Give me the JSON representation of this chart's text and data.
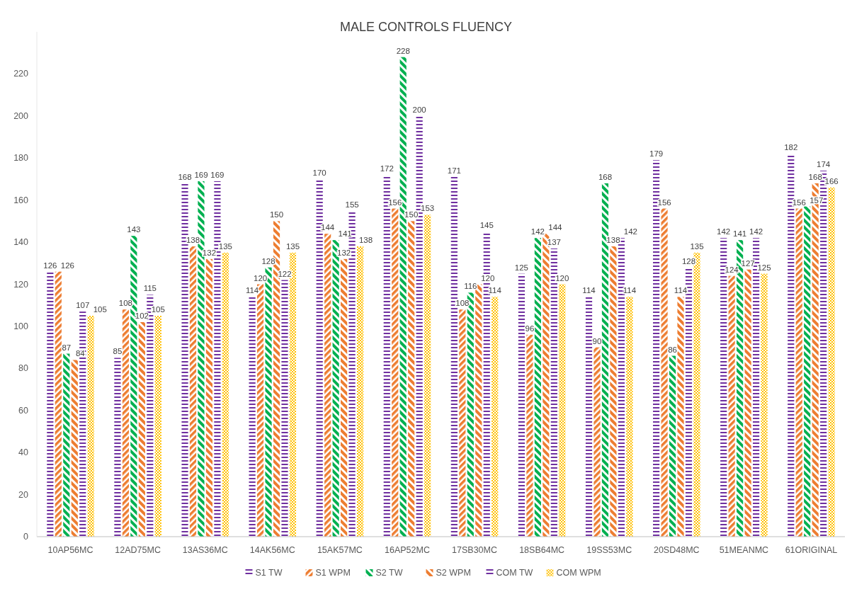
{
  "chart_data": {
    "type": "bar",
    "title": "MALE CONTROLS FLUENCY",
    "categories": [
      "10AP56MC",
      "12AD75MC",
      "13AS36MC",
      "14AK56MC",
      "15AK57MC",
      "16AP52MC",
      "17SB30MC",
      "18SB64MC",
      "19SS53MC",
      "20SD48MC",
      "51MEANMC",
      "61ORIGINAL"
    ],
    "series": [
      {
        "name": "S1 TW",
        "color": "#7030a0",
        "values": [
          126,
          85,
          168,
          114,
          170,
          172,
          171,
          125,
          114,
          179,
          142,
          182
        ]
      },
      {
        "name": "S1 WPM",
        "color": "#ed7d31",
        "values": [
          126,
          108,
          138,
          120,
          144,
          156,
          108,
          96,
          90,
          156,
          124,
          156
        ]
      },
      {
        "name": "S2 TW",
        "color": "#00b050",
        "values": [
          87,
          143,
          169,
          128,
          141,
          228,
          116,
          142,
          168,
          86,
          141,
          157
        ]
      },
      {
        "name": "S2 WPM",
        "color": "#ed7d31",
        "values": [
          84,
          102,
          132,
          150,
          132,
          150,
          120,
          144,
          138,
          114,
          127,
          168
        ]
      },
      {
        "name": "COM TW",
        "color": "#7030a0",
        "values": [
          107,
          115,
          169,
          122,
          155,
          200,
          145,
          137,
          142,
          128,
          142,
          174
        ]
      },
      {
        "name": "COM WPM",
        "color": "#ffc000",
        "values": [
          105,
          105,
          135,
          135,
          138,
          153,
          114,
          120,
          114,
          135,
          125,
          166
        ]
      }
    ],
    "ylim": [
      0,
      240
    ],
    "yticks": [
      0,
      20,
      40,
      60,
      80,
      100,
      120,
      140,
      160,
      180,
      200,
      220
    ],
    "data_labels": true,
    "legend": "bottom",
    "grid": false
  }
}
